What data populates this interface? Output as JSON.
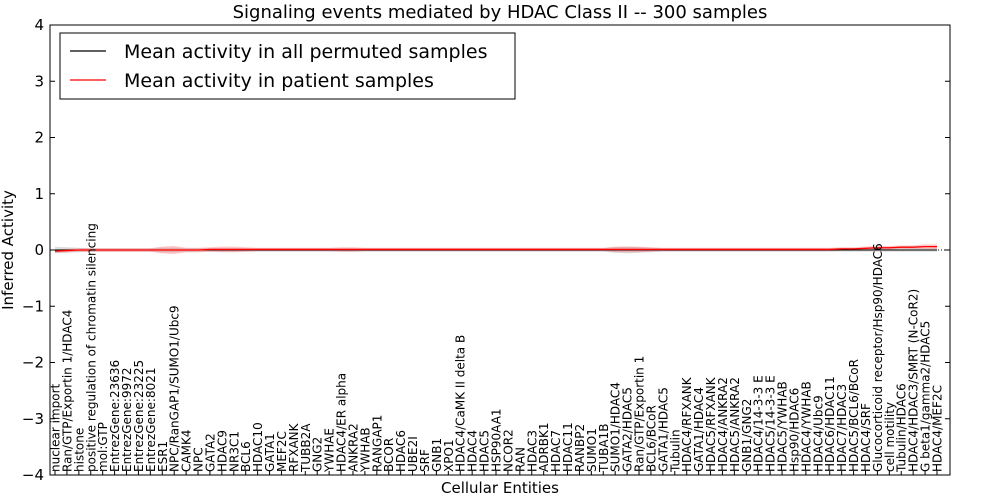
{
  "chart_data": {
    "type": "line",
    "title": "Signaling events mediated by HDAC Class II -- 300 samples",
    "xlabel": "Cellular Entities",
    "ylabel": "Inferred Activity",
    "ylim": [
      -4,
      4
    ],
    "yticks": [
      -4,
      -3,
      -2,
      -1,
      0,
      1,
      2,
      3,
      4
    ],
    "ytick_labels": [
      "−4",
      "−3",
      "−2",
      "−1",
      "0",
      "1",
      "2",
      "3",
      "4"
    ],
    "legend_position": "top-left",
    "categories": [
      "nuclear import",
      "Ran/GTP/Exportin 1/HDAC4",
      "histone",
      "positive regulation of chromatin silencing",
      "mol:GTP",
      "EntrezGene:23636",
      "EntrezGene:9972",
      "EntrezGene:23225",
      "EntrezGene:8021",
      "ESR1",
      "NPC/RanGAP1/SUMO1/Ubc9",
      "CAMK4",
      "NPC",
      "GATA2",
      "HDAC9",
      "NR3C1",
      "BCL6",
      "HDAC10",
      "GATA1",
      "MEF2C",
      "RFXANK",
      "TUBB2A",
      "GNG2",
      "YWHAE",
      "HDAC4/ER alpha",
      "ANKRA2",
      "YWHAB",
      "RANGAP1",
      "BCOR",
      "HDAC6",
      "UBE2I",
      "SRF",
      "GNB1",
      "XPO1",
      "HDAC4/CaMK II delta B",
      "HDAC4",
      "HDAC5",
      "HSP90AA1",
      "NCOR2",
      "RAN",
      "HDAC3",
      "ADRBK1",
      "HDAC7",
      "HDAC11",
      "RANBP2",
      "SUMO1",
      "TUBA1B",
      "SUMO1/HDAC4",
      "GATA2/HDAC5",
      "Ran/GTP/Exportin 1",
      "BCL6/BCoR",
      "GATA1/HDAC5",
      "Tubulin",
      "HDAC4/RFXANK",
      "GATA1/HDAC4",
      "HDAC5/RFXANK",
      "HDAC4/ANKRA2",
      "HDAC5/ANKRA2",
      "GNB1/GNG2",
      "HDAC4/14-3-3 E",
      "HDAC5/14-3-3 E",
      "HDAC5/YWHAB",
      "Hsp90/HDAC6",
      "HDAC4/YWHAB",
      "HDAC4/Ubc9",
      "HDAC6/HDAC11",
      "HDAC7/HDAC3",
      "HDAC5/BCL6/BCoR",
      "HDAC4/SRF",
      "Glucocorticoid receptor/Hsp90/HDAC6",
      "cell motility",
      "Tubulin/HDAC6",
      "HDAC4/HDAC3/SMRT (N-CoR2)",
      "G beta1/gamma2/HDAC5",
      "HDAC4/MEF2C"
    ],
    "series": [
      {
        "name": "Mean activity in all permuted samples",
        "color": "#000000",
        "values": [
          0,
          0,
          0,
          0,
          0,
          0,
          0,
          0,
          0,
          0,
          0,
          0,
          0,
          0,
          0,
          0,
          0,
          0,
          0,
          0,
          0,
          0,
          0,
          0,
          0,
          0,
          0,
          0,
          0,
          0,
          0,
          0,
          0,
          0,
          0,
          0,
          0,
          0,
          0,
          0,
          0,
          0,
          0,
          0,
          0,
          0,
          0,
          0,
          0,
          0,
          0,
          0,
          0,
          0,
          0,
          0,
          0,
          0,
          0,
          0,
          0,
          0,
          0,
          0,
          0,
          0,
          0,
          0,
          0,
          0,
          0,
          0,
          0,
          0,
          0
        ],
        "band_half_width": [
          0.06,
          0.05,
          0.04,
          0.03,
          0.03,
          0.03,
          0.03,
          0.03,
          0.03,
          0.04,
          0.04,
          0.03,
          0.03,
          0.03,
          0.03,
          0.03,
          0.03,
          0.03,
          0.03,
          0.03,
          0.03,
          0.03,
          0.03,
          0.03,
          0.03,
          0.03,
          0.03,
          0.03,
          0.03,
          0.03,
          0.03,
          0.03,
          0.03,
          0.03,
          0.03,
          0.03,
          0.03,
          0.03,
          0.03,
          0.03,
          0.03,
          0.03,
          0.03,
          0.03,
          0.03,
          0.03,
          0.03,
          0.05,
          0.06,
          0.05,
          0.04,
          0.03,
          0.03,
          0.03,
          0.03,
          0.03,
          0.03,
          0.03,
          0.03,
          0.03,
          0.03,
          0.03,
          0.03,
          0.03,
          0.03,
          0.03,
          0.03,
          0.03,
          0.03,
          0.03,
          0.03,
          0.03,
          0.03,
          0.03,
          0.03
        ]
      },
      {
        "name": "Mean activity in patient samples",
        "color": "#ff0000",
        "values": [
          -0.02,
          -0.01,
          0.0,
          0.0,
          0.0,
          0.0,
          0.0,
          0.0,
          0.0,
          0.0,
          0.0,
          0.0,
          0.0,
          0.01,
          0.01,
          0.01,
          0.01,
          0.01,
          0.01,
          0.01,
          0.01,
          0.01,
          0.01,
          0.01,
          0.01,
          0.01,
          0.01,
          0.01,
          0.01,
          0.01,
          0.01,
          0.01,
          0.01,
          0.01,
          0.01,
          0.01,
          0.01,
          0.01,
          0.01,
          0.01,
          0.01,
          0.01,
          0.01,
          0.01,
          0.01,
          0.01,
          0.01,
          0.01,
          0.01,
          0.01,
          0.01,
          0.01,
          0.01,
          0.01,
          0.01,
          0.01,
          0.01,
          0.01,
          0.01,
          0.01,
          0.01,
          0.01,
          0.01,
          0.01,
          0.01,
          0.01,
          0.02,
          0.02,
          0.03,
          0.04,
          0.04,
          0.05,
          0.05,
          0.06,
          0.06
        ],
        "band_half_width": [
          0.03,
          0.03,
          0.03,
          0.03,
          0.03,
          0.03,
          0.03,
          0.03,
          0.03,
          0.06,
          0.07,
          0.04,
          0.04,
          0.04,
          0.05,
          0.05,
          0.04,
          0.03,
          0.03,
          0.03,
          0.03,
          0.03,
          0.03,
          0.03,
          0.04,
          0.04,
          0.03,
          0.03,
          0.03,
          0.03,
          0.03,
          0.03,
          0.03,
          0.03,
          0.03,
          0.03,
          0.03,
          0.03,
          0.03,
          0.03,
          0.03,
          0.03,
          0.03,
          0.03,
          0.03,
          0.03,
          0.03,
          0.05,
          0.05,
          0.05,
          0.04,
          0.03,
          0.03,
          0.03,
          0.03,
          0.03,
          0.03,
          0.03,
          0.03,
          0.03,
          0.03,
          0.03,
          0.03,
          0.03,
          0.03,
          0.03,
          0.03,
          0.03,
          0.03,
          0.03,
          0.03,
          0.03,
          0.03,
          0.04,
          0.04
        ]
      }
    ]
  }
}
